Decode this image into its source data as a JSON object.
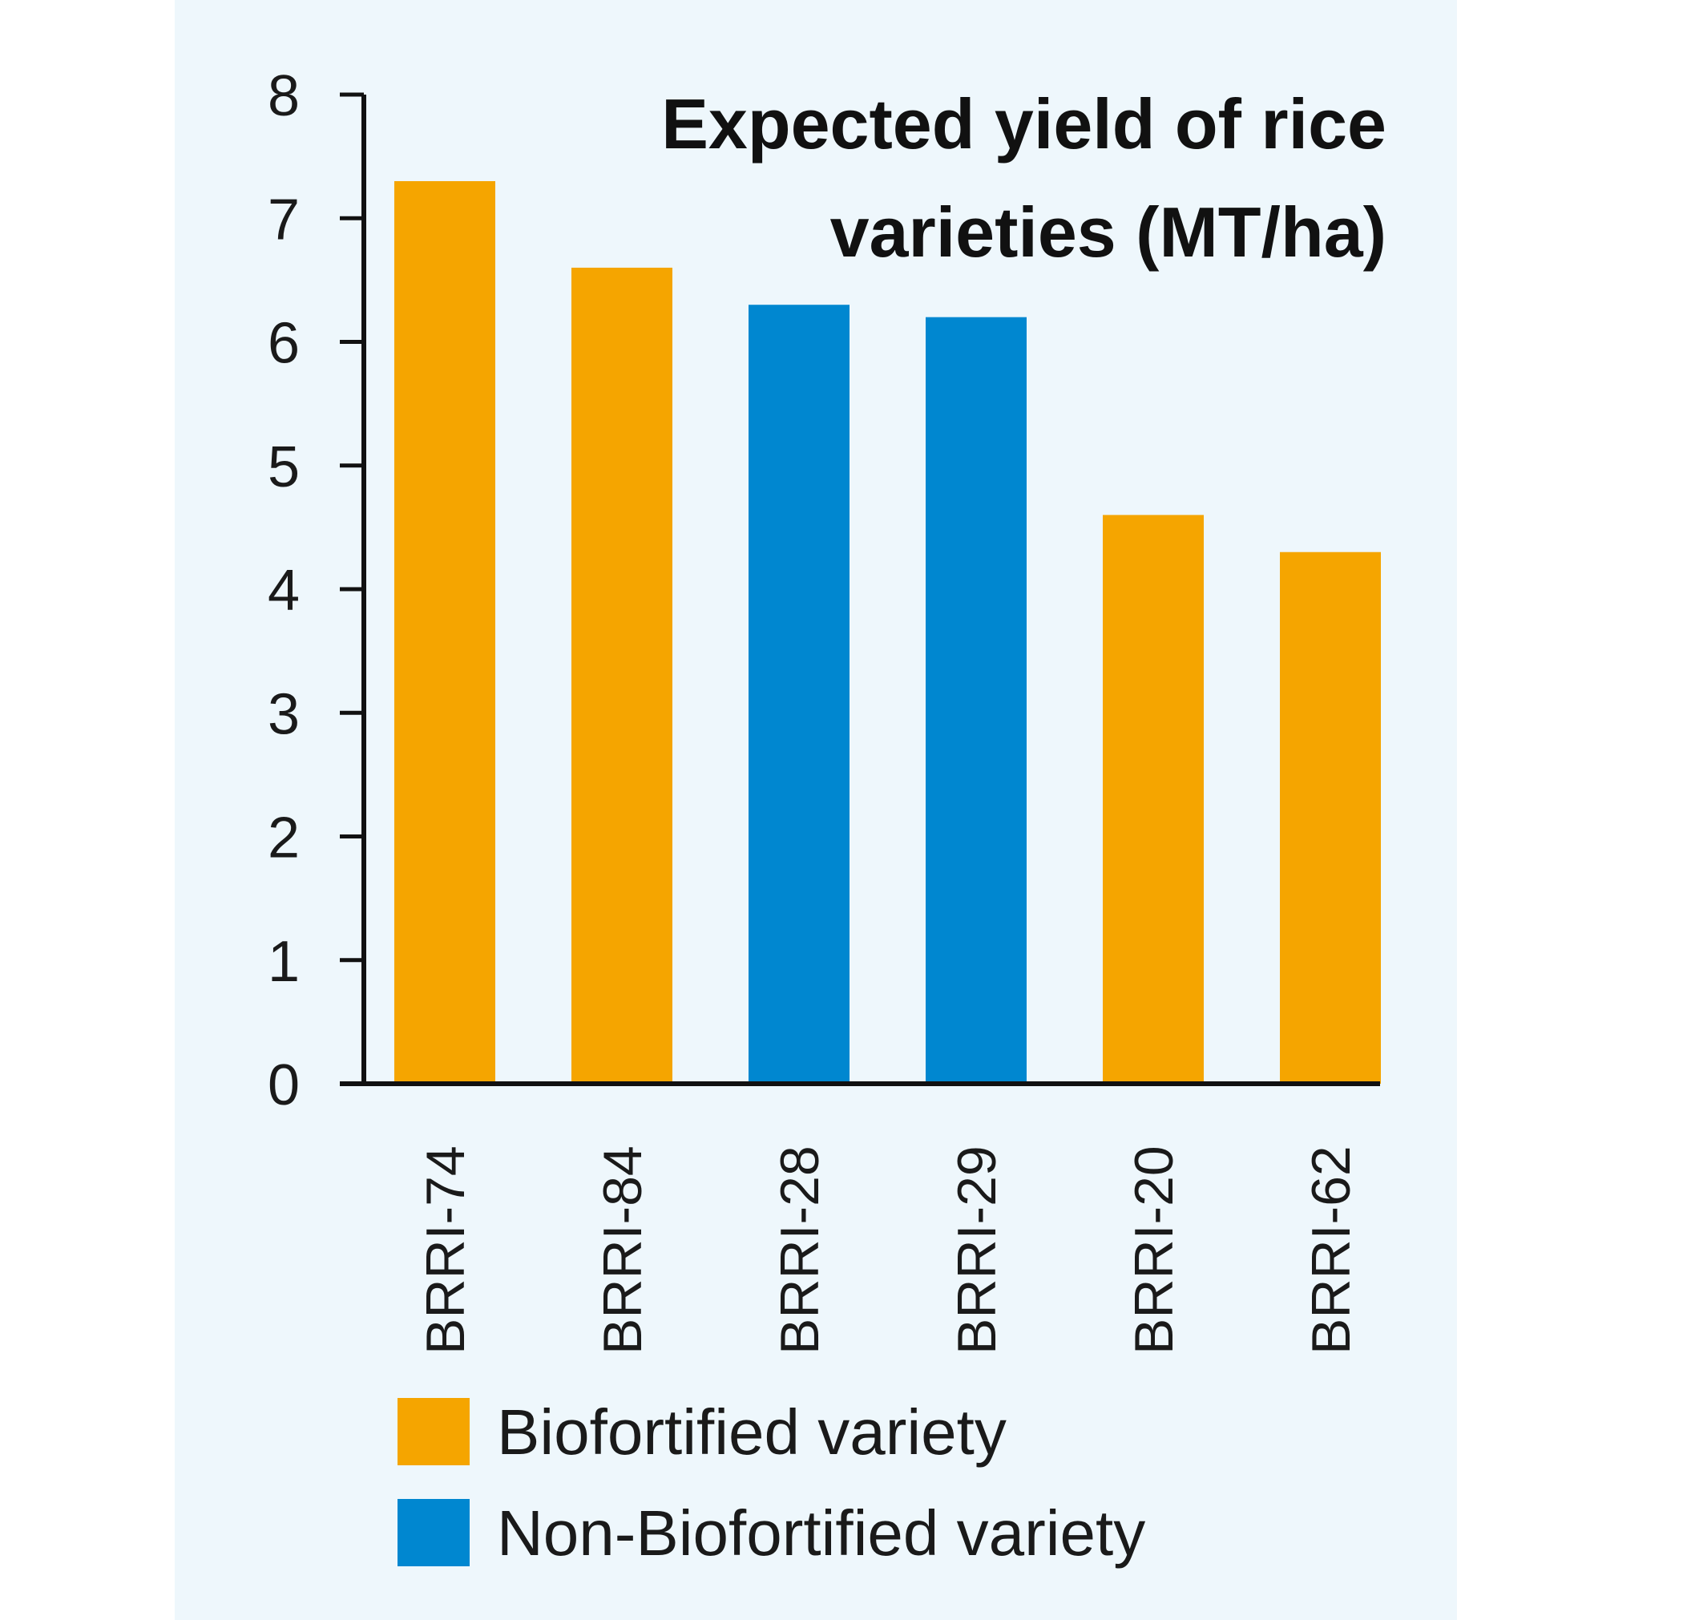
{
  "chart_data": {
    "type": "bar",
    "title": "Expected yield of rice varieties (MT/ha)",
    "title_lines": [
      "Expected yield of rice",
      "varieties (MT/ha)"
    ],
    "categories": [
      "BRRI-74",
      "BRRI-84",
      "BRRI-28",
      "BRRI-29",
      "BRRI-20",
      "BRRI-62"
    ],
    "values": [
      7.3,
      6.6,
      6.3,
      6.2,
      4.6,
      4.3
    ],
    "groups": [
      "Biofortified variety",
      "Biofortified variety",
      "Non-Biofortified variety",
      "Non-Biofortified variety",
      "Biofortified variety",
      "Biofortified variety"
    ],
    "ylim": [
      0,
      8
    ],
    "yticks": [
      "0",
      "1",
      "2",
      "3",
      "4",
      "5",
      "6",
      "7",
      "8"
    ],
    "xlabel": "",
    "ylabel": "",
    "grid": false,
    "legend": {
      "placement": "bottom",
      "entries": [
        {
          "name": "Biofortified variety",
          "color": "#f5a500"
        },
        {
          "name": "Non-Biofortified variety",
          "color": "#0087d0"
        }
      ]
    }
  },
  "colors": {
    "background": "#eef7fc",
    "biofortified": "#f5a500",
    "non_biofortified": "#0087d0",
    "axis": "#111111"
  }
}
